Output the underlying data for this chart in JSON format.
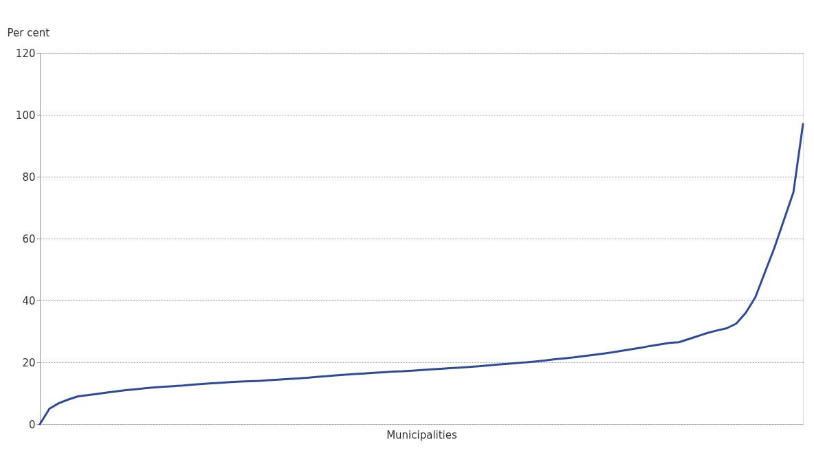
{
  "chart_data": {
    "type": "line",
    "xlabel": "Municipalities",
    "ylabel": "Per cent",
    "categories": [
      null,
      null,
      null,
      null,
      null,
      null,
      null,
      null,
      null,
      null,
      null,
      null,
      null,
      null,
      null,
      null,
      null,
      null,
      null,
      null,
      null,
      null,
      null,
      null,
      null,
      null,
      null,
      null,
      null,
      null,
      null,
      null,
      null,
      null,
      null,
      null,
      null,
      null,
      null,
      null,
      null,
      null,
      null,
      null,
      null,
      null,
      null,
      null,
      null,
      null,
      null,
      null,
      null,
      null,
      null,
      null,
      null,
      null,
      null,
      null,
      null,
      null,
      null,
      null,
      null,
      null,
      null,
      null,
      null,
      null,
      null,
      null,
      null,
      null,
      null,
      null,
      null,
      null,
      null,
      null,
      null
    ],
    "series": [
      {
        "color": "#2e4a9a",
        "values": [
          0,
          5,
          6.8,
          8,
          9,
          9.4,
          9.8,
          10.2,
          10.6,
          11,
          11.3,
          11.6,
          11.9,
          12.1,
          12.3,
          12.5,
          12.8,
          13,
          13.2,
          13.4,
          13.6,
          13.8,
          13.9,
          14,
          14.2,
          14.4,
          14.6,
          14.8,
          15,
          15.3,
          15.5,
          15.8,
          16,
          16.2,
          16.4,
          16.6,
          16.8,
          17,
          17.1,
          17.3,
          17.5,
          17.7,
          17.9,
          18.1,
          18.3,
          18.5,
          18.7,
          19,
          19.3,
          19.5,
          19.8,
          20,
          20.3,
          20.6,
          21,
          21.3,
          21.6,
          22,
          22.4,
          22.8,
          23.2,
          23.7,
          24.2,
          24.7,
          25.3,
          25.8,
          26.3,
          26.5,
          27.5,
          28.5,
          29.5,
          30.3,
          31,
          32.5,
          36,
          41,
          49,
          57,
          66,
          75,
          97
        ]
      }
    ],
    "ylim": [
      0,
      120
    ],
    "yticks": [
      0,
      20,
      40,
      60,
      80,
      100,
      120
    ],
    "grid": "y",
    "tick_labels": "y",
    "marker": "none",
    "line_style": "solid"
  }
}
